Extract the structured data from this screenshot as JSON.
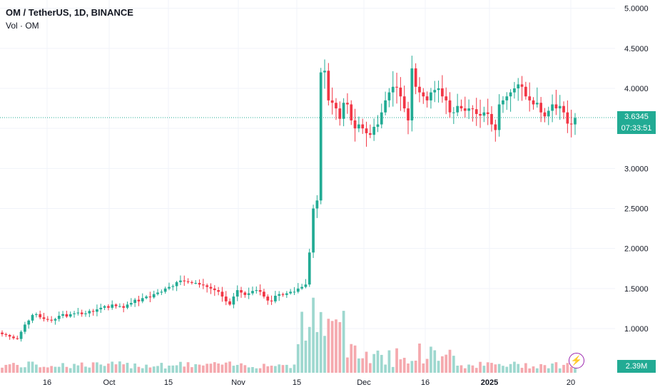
{
  "legend": {
    "symbol_line": "OM / TetherUS, 1D, BINANCE",
    "volume_line": "Vol · OM"
  },
  "current_price": {
    "value": "3.6345",
    "countdown": "07:33:51"
  },
  "volume_label": "2.39M",
  "lightning_icon": "lightning-bolt-icon",
  "colors": {
    "up": "#22ab94",
    "down": "#f23645",
    "vol_up": "#9ed8cf",
    "vol_down": "#f5a9ae",
    "price_line": "#22ab94"
  },
  "chart_data": {
    "type": "candlestick",
    "title": "OM / TetherUS, 1D, BINANCE",
    "y_axis": {
      "ticks": [
        "5.0000",
        "4.5000",
        "4.0000",
        "3.5000",
        "3.0000",
        "2.5000",
        "2.0000",
        "1.5000",
        "1.0000"
      ],
      "range": [
        0.55,
        5.05
      ],
      "position": "right"
    },
    "x_axis": {
      "ticks": [
        "16",
        "Oct",
        "15",
        "Nov",
        "15",
        "Dec",
        "16",
        "2025",
        "20"
      ]
    },
    "grid": true,
    "current_price": 3.6345,
    "volume_last": "2.39M",
    "candles_note": "OHLC approximated from visual",
    "closes": [
      0.93,
      0.92,
      0.9,
      0.88,
      0.87,
      0.96,
      1.05,
      1.1,
      1.17,
      1.18,
      1.14,
      1.12,
      1.11,
      1.1,
      1.12,
      1.16,
      1.18,
      1.15,
      1.18,
      1.19,
      1.2,
      1.18,
      1.19,
      1.22,
      1.21,
      1.24,
      1.26,
      1.28,
      1.26,
      1.3,
      1.28,
      1.28,
      1.26,
      1.3,
      1.32,
      1.36,
      1.34,
      1.38,
      1.4,
      1.39,
      1.43,
      1.45,
      1.46,
      1.5,
      1.52,
      1.53,
      1.58,
      1.6,
      1.59,
      1.58,
      1.57,
      1.57,
      1.55,
      1.54,
      1.52,
      1.5,
      1.48,
      1.46,
      1.4,
      1.34,
      1.3,
      1.4,
      1.48,
      1.45,
      1.42,
      1.44,
      1.47,
      1.48,
      1.46,
      1.4,
      1.35,
      1.34,
      1.41,
      1.43,
      1.42,
      1.44,
      1.46,
      1.46,
      1.5,
      1.52,
      1.55,
      1.95,
      2.5,
      2.6,
      4.2,
      4.22,
      3.85,
      3.82,
      3.75,
      3.62,
      3.82,
      3.8,
      3.6,
      3.5,
      3.55,
      3.5,
      3.44,
      3.42,
      3.52,
      3.55,
      3.7,
      3.85,
      3.95,
      4.02,
      4.01,
      3.9,
      3.75,
      3.6,
      4.25,
      4.02,
      3.95,
      3.9,
      3.85,
      3.95,
      3.98,
      4.0,
      3.9,
      3.85,
      3.7,
      3.7,
      3.78,
      3.75,
      3.72,
      3.75,
      3.74,
      3.68,
      3.66,
      3.7,
      3.68,
      3.55,
      3.48,
      3.8,
      3.85,
      3.9,
      3.95,
      4.0,
      4.05,
      4.02,
      3.9,
      3.85,
      3.8,
      3.82,
      3.7,
      3.65,
      3.72,
      3.8,
      3.75,
      3.78,
      3.7,
      3.56,
      3.55,
      3.63
    ]
  }
}
